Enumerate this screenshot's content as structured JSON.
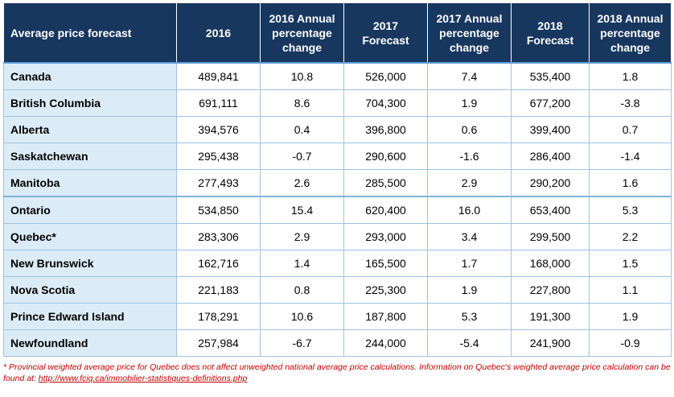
{
  "table": {
    "headers": [
      "Average price forecast",
      "2016",
      "2016 Annual percentage change",
      "2017 Forecast",
      "2017 Annual percentage change",
      "2018 Forecast",
      "2018 Annual percentage change"
    ],
    "header_lines": [
      [
        "Average price forecast"
      ],
      [
        "2016"
      ],
      [
        "2016 Annual",
        "percentage",
        "change"
      ],
      [
        "2017",
        "Forecast"
      ],
      [
        "2017 Annual",
        "percentage",
        "change"
      ],
      [
        "2018",
        "Forecast"
      ],
      [
        "2018 Annual",
        "percentage",
        "change"
      ]
    ],
    "rows": [
      [
        "Canada",
        "489,841",
        "10.8",
        "526,000",
        "7.4",
        "535,400",
        "1.8"
      ],
      [
        "British Columbia",
        "691,111",
        "8.6",
        "704,300",
        "1.9",
        "677,200",
        "-3.8"
      ],
      [
        "Alberta",
        "394,576",
        "0.4",
        "396,800",
        "0.6",
        "399,400",
        "0.7"
      ],
      [
        "Saskatchewan",
        "295,438",
        "-0.7",
        "290,600",
        "-1.6",
        "286,400",
        "-1.4"
      ],
      [
        "Manitoba",
        "277,493",
        "2.6",
        "285,500",
        "2.9",
        "290,200",
        "1.6"
      ],
      [
        "Ontario",
        "534,850",
        "15.4",
        "620,400",
        "16.0",
        "653,400",
        "5.3"
      ],
      [
        "Quebec*",
        "283,306",
        "2.9",
        "293,000",
        "3.4",
        "299,500",
        "2.2"
      ],
      [
        "New Brunswick",
        "162,716",
        "1.4",
        "165,500",
        "1.7",
        "168,000",
        "1.5"
      ],
      [
        "Nova Scotia",
        "221,183",
        "0.8",
        "225,300",
        "1.9",
        "227,800",
        "1.1"
      ],
      [
        "Prince Edward Island",
        "178,291",
        "10.6",
        "187,800",
        "5.3",
        "191,300",
        "1.9"
      ],
      [
        "Newfoundland",
        "257,984",
        "-6.7",
        "244,000",
        "-5.4",
        "241,900",
        "-0.9"
      ]
    ]
  },
  "footnote": {
    "text": "* Provincial weighted average price for Quebec does not affect unweighted national average price calculations. Information on Quebec's weighted average price calculation can be found at: ",
    "link": "http://www.fciq.ca/immobilier-statistiques-definitions.php"
  },
  "colors": {
    "header_bg": "#17375e",
    "region_bg": "#dcecf7",
    "grid": "#9dc3e6",
    "footnote": "#c00000"
  }
}
